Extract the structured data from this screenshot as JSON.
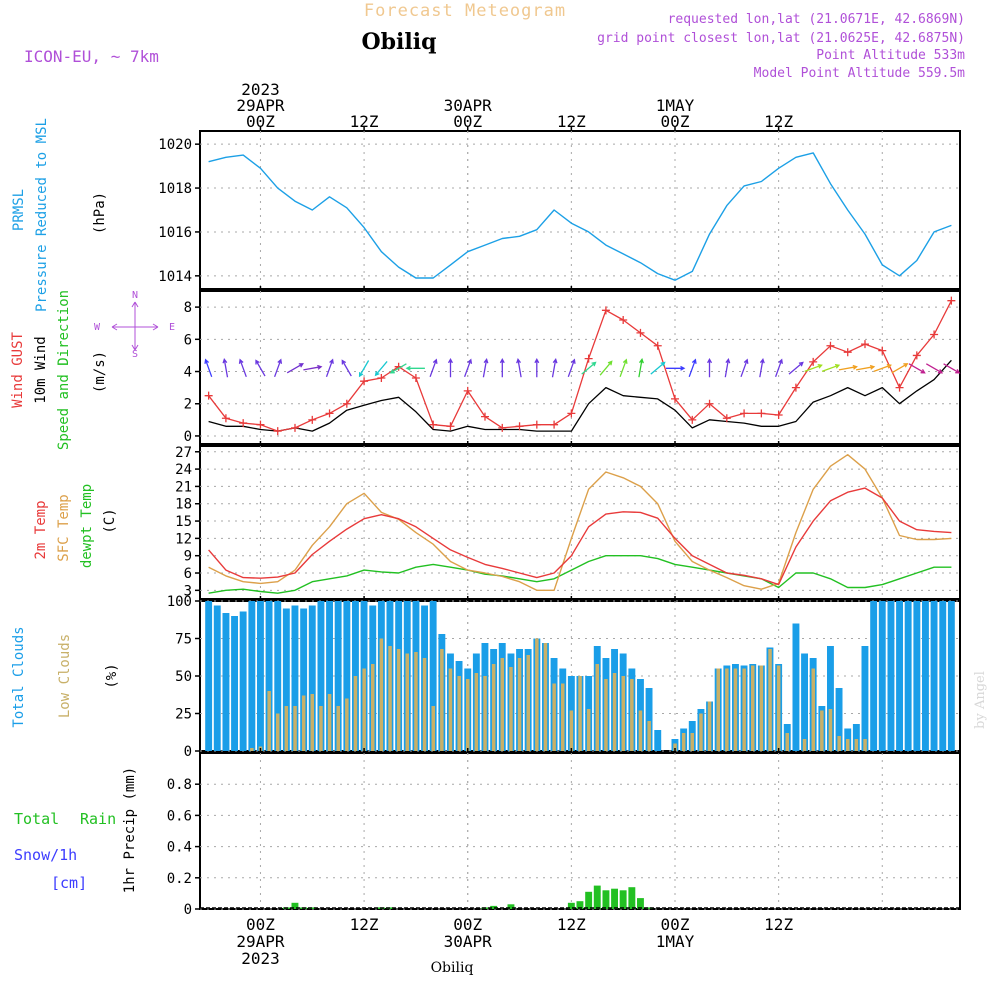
{
  "header": {
    "title": "Forecast Meteogram",
    "location": "Obiliq",
    "model": "ICON-EU, ~ 7km",
    "requested": "requested lon,lat (21.0671E, 42.6869N)",
    "grid_point": "grid point closest lon,lat (21.0625E, 42.6875N)",
    "point_altitude": "Point Altitude 533m",
    "model_altitude": "Model Point Altitude 559.5m"
  },
  "colors": {
    "pressure": "#1ca0e6",
    "gust": "#e83a3a",
    "wind10m": "#000000",
    "temp2m": "#e83a3a",
    "sfc_temp": "#dca04a",
    "dewpoint": "#22c022",
    "total_clouds": "#1a9ee8",
    "low_clouds": "#c8b068",
    "rain": "#22c022",
    "snow": "#3c3cff",
    "meta": "#b050d8",
    "title": "#f0c890"
  },
  "footer": {
    "location": "Obiliq",
    "watermark": "by Angel"
  },
  "chart_data": [
    {
      "id": "pressure",
      "type": "line",
      "title": "PRMSL Pressure Reduced to MSL",
      "ylabel_lines": [
        "PRMSL",
        "Pressure Reduced to MSL"
      ],
      "unit": "(hPa)",
      "ylim": [
        1013.4,
        1020.6
      ],
      "yticks": [
        1014,
        1016,
        1018,
        1020
      ],
      "x_hours": [
        -6,
        -4,
        -2,
        0,
        2,
        4,
        6,
        8,
        10,
        12,
        14,
        16,
        18,
        20,
        22,
        24,
        26,
        28,
        30,
        32,
        34,
        36,
        38,
        40,
        42,
        44,
        46,
        48,
        50,
        52,
        54,
        56,
        58,
        60,
        62,
        64,
        66,
        68,
        70,
        72,
        74,
        76,
        78,
        80
      ],
      "values": [
        1019.2,
        1019.4,
        1019.5,
        1018.9,
        1018.0,
        1017.4,
        1017.0,
        1017.6,
        1017.1,
        1016.2,
        1015.1,
        1014.4,
        1013.9,
        1013.9,
        1014.5,
        1015.1,
        1015.4,
        1015.7,
        1015.8,
        1016.1,
        1017.0,
        1016.4,
        1016.0,
        1015.4,
        1015.0,
        1014.6,
        1014.1,
        1013.8,
        1014.2,
        1015.9,
        1017.2,
        1018.1,
        1018.3,
        1018.9,
        1019.4,
        1019.6,
        1018.2,
        1017.0,
        1015.9,
        1014.5,
        1014.0,
        1014.7,
        1016.0,
        1016.3
      ]
    },
    {
      "id": "wind",
      "type": "line",
      "title": "Wind GUST / 10m Wind Speed and Direction",
      "label_gust": "Wind GUST",
      "label_wind": "10m Wind",
      "label_dir": "Speed and Direction",
      "unit": "(m/s)",
      "compass": {
        "n": "N",
        "s": "S",
        "w": "W",
        "e": "E"
      },
      "ylim": [
        -0.5,
        9
      ],
      "yticks": [
        0,
        2,
        4,
        6,
        8
      ],
      "x_hours": [
        -6,
        -4,
        -2,
        0,
        2,
        4,
        6,
        8,
        10,
        12,
        14,
        16,
        18,
        20,
        22,
        24,
        26,
        28,
        30,
        32,
        34,
        36,
        38,
        40,
        42,
        44,
        46,
        48,
        50,
        52,
        54,
        56,
        58,
        60,
        62,
        64,
        66,
        68,
        70,
        72,
        74,
        76,
        78,
        80
      ],
      "series": [
        {
          "name": "Wind GUST",
          "values": [
            2.5,
            1.1,
            0.8,
            0.7,
            0.3,
            0.5,
            1.0,
            1.4,
            2.0,
            3.4,
            3.6,
            4.3,
            3.6,
            0.7,
            0.6,
            2.8,
            1.2,
            0.5,
            0.6,
            0.7,
            0.7,
            1.4,
            4.8,
            7.8,
            7.2,
            6.4,
            5.6,
            2.3,
            1.0,
            2.0,
            1.1,
            1.4,
            1.4,
            1.3,
            3.0,
            4.6,
            5.6,
            5.2,
            5.7,
            5.3,
            3.0,
            5.0,
            6.3,
            8.4
          ]
        },
        {
          "name": "10m Wind",
          "values": [
            0.9,
            0.6,
            0.6,
            0.4,
            0.3,
            0.5,
            0.3,
            0.8,
            1.6,
            1.9,
            2.2,
            2.4,
            1.5,
            0.4,
            0.3,
            0.6,
            0.4,
            0.4,
            0.4,
            0.3,
            0.3,
            0.3,
            2.0,
            3.0,
            2.5,
            2.4,
            2.3,
            1.6,
            0.5,
            1.0,
            0.9,
            0.8,
            0.6,
            0.6,
            0.9,
            2.1,
            2.5,
            3.0,
            2.5,
            3.0,
            2.0,
            2.8,
            3.5,
            4.7
          ]
        }
      ],
      "direction_arrows": [
        {
          "h": -6,
          "dir": 160,
          "color": "#3c3cff"
        },
        {
          "h": -4,
          "dir": 170,
          "color": "#6a38e0"
        },
        {
          "h": -2,
          "dir": 160,
          "color": "#6a38e0"
        },
        {
          "h": 0,
          "dir": 150,
          "color": "#6a38e0"
        },
        {
          "h": 2,
          "dir": 200,
          "color": "#6a38e0"
        },
        {
          "h": 4,
          "dir": 240,
          "color": "#7030d0"
        },
        {
          "h": 6,
          "dir": 260,
          "color": "#7a30c8"
        },
        {
          "h": 8,
          "dir": 200,
          "color": "#6a38e0"
        },
        {
          "h": 10,
          "dir": 150,
          "color": "#6a38e0"
        },
        {
          "h": 12,
          "dir": 30,
          "color": "#18c8d0"
        },
        {
          "h": 14,
          "dir": 40,
          "color": "#18c8d0"
        },
        {
          "h": 16,
          "dir": 60,
          "color": "#30d890"
        },
        {
          "h": 18,
          "dir": 90,
          "color": "#30d890"
        },
        {
          "h": 20,
          "dir": 200,
          "color": "#6a38e0"
        },
        {
          "h": 22,
          "dir": 180,
          "color": "#6a38e0"
        },
        {
          "h": 24,
          "dir": 200,
          "color": "#6a38e0"
        },
        {
          "h": 26,
          "dir": 190,
          "color": "#6a38e0"
        },
        {
          "h": 28,
          "dir": 180,
          "color": "#6a38e0"
        },
        {
          "h": 30,
          "dir": 170,
          "color": "#6a38e0"
        },
        {
          "h": 32,
          "dir": 180,
          "color": "#6a38e0"
        },
        {
          "h": 34,
          "dir": 190,
          "color": "#6a38e0"
        },
        {
          "h": 36,
          "dir": 200,
          "color": "#6a38e0"
        },
        {
          "h": 38,
          "dir": 230,
          "color": "#30d890"
        },
        {
          "h": 40,
          "dir": 220,
          "color": "#70e030"
        },
        {
          "h": 42,
          "dir": 200,
          "color": "#70e030"
        },
        {
          "h": 44,
          "dir": 190,
          "color": "#30d030"
        },
        {
          "h": 46,
          "dir": 230,
          "color": "#18c8d0"
        },
        {
          "h": 48,
          "dir": 270,
          "color": "#3c3cff"
        },
        {
          "h": 50,
          "dir": 200,
          "color": "#3c3cff"
        },
        {
          "h": 52,
          "dir": 180,
          "color": "#6a38e0"
        },
        {
          "h": 54,
          "dir": 190,
          "color": "#6a38e0"
        },
        {
          "h": 56,
          "dir": 200,
          "color": "#6a38e0"
        },
        {
          "h": 58,
          "dir": 190,
          "color": "#6a38e0"
        },
        {
          "h": 60,
          "dir": 200,
          "color": "#6a38e0"
        },
        {
          "h": 62,
          "dir": 230,
          "color": "#6a38e0"
        },
        {
          "h": 64,
          "dir": 250,
          "color": "#a0e020"
        },
        {
          "h": 66,
          "dir": 250,
          "color": "#a0e020"
        },
        {
          "h": 68,
          "dir": 260,
          "color": "#f0a020"
        },
        {
          "h": 70,
          "dir": 260,
          "color": "#f0a020"
        },
        {
          "h": 72,
          "dir": 250,
          "color": "#f0a020"
        },
        {
          "h": 74,
          "dir": 240,
          "color": "#f0a020"
        },
        {
          "h": 76,
          "dir": 300,
          "color": "#c02090"
        },
        {
          "h": 78,
          "dir": 300,
          "color": "#c02090"
        },
        {
          "h": 80,
          "dir": 300,
          "color": "#c02090"
        }
      ]
    },
    {
      "id": "temperature",
      "type": "line",
      "title": "2m Temp / SFC Temp / dewpt Temp",
      "label_2m": "2m Temp",
      "label_sfc": "SFC Temp",
      "label_dew": "dewpt Temp",
      "unit": "(C)",
      "ylim": [
        1.5,
        28
      ],
      "yticks": [
        3,
        6,
        9,
        12,
        15,
        18,
        21,
        24,
        27
      ],
      "x_hours": [
        -6,
        -4,
        -2,
        0,
        2,
        4,
        6,
        8,
        10,
        12,
        14,
        16,
        18,
        20,
        22,
        24,
        26,
        28,
        30,
        32,
        34,
        36,
        38,
        40,
        42,
        44,
        46,
        48,
        50,
        52,
        54,
        56,
        58,
        60,
        62,
        64,
        66,
        68,
        70,
        72,
        74,
        76,
        78,
        80
      ],
      "series": [
        {
          "name": "2m Temp",
          "values": [
            10.0,
            6.5,
            5.2,
            5.1,
            5.3,
            6.0,
            9.2,
            11.5,
            13.6,
            15.4,
            16.1,
            15.4,
            14.0,
            12.0,
            10.0,
            8.7,
            7.5,
            6.8,
            6.0,
            5.2,
            6.0,
            9.0,
            14.0,
            16.2,
            16.6,
            16.5,
            15.5,
            12.0,
            9.0,
            7.5,
            6.0,
            5.6,
            5.0,
            4.0,
            10.5,
            15.0,
            18.5,
            20.0,
            20.7,
            19.0,
            15.0,
            13.5,
            13.2,
            13.0
          ]
        },
        {
          "name": "SFC Temp",
          "values": [
            7.0,
            5.5,
            4.5,
            4.2,
            4.5,
            6.5,
            10.8,
            14.0,
            18.0,
            19.8,
            16.5,
            15.3,
            13.0,
            11.0,
            8.0,
            6.5,
            6.0,
            5.4,
            4.5,
            3.0,
            3.0,
            12.0,
            20.5,
            23.5,
            22.5,
            21.0,
            18.0,
            11.5,
            8.0,
            6.5,
            5.2,
            3.8,
            3.2,
            4.2,
            13.0,
            20.5,
            24.5,
            26.5,
            24.0,
            19.0,
            12.5,
            11.8,
            11.8,
            12.0
          ]
        },
        {
          "name": "dewpt Temp",
          "values": [
            2.5,
            3.0,
            3.2,
            2.8,
            2.5,
            3.0,
            4.5,
            5.0,
            5.5,
            6.5,
            6.2,
            6.0,
            7.0,
            7.5,
            7.0,
            6.5,
            5.8,
            5.5,
            5.0,
            4.5,
            5.0,
            6.5,
            8.0,
            9.0,
            9.0,
            9.0,
            8.5,
            7.5,
            7.0,
            6.5,
            6.0,
            5.5,
            5.0,
            3.5,
            6.0,
            6.0,
            5.0,
            3.5,
            3.5,
            4.0,
            5.0,
            6.0,
            7.0,
            7.0
          ]
        }
      ]
    },
    {
      "id": "clouds",
      "type": "bar",
      "title": "Total Clouds / Low Clouds",
      "label_total": "Total Clouds",
      "label_low": "Low Clouds",
      "unit": "(%)",
      "ylim": [
        0,
        100
      ],
      "yticks": [
        0,
        25,
        50,
        75,
        100
      ],
      "x_hours": [
        -6,
        -5,
        -4,
        -3,
        -2,
        -1,
        0,
        1,
        2,
        3,
        4,
        5,
        6,
        7,
        8,
        9,
        10,
        11,
        12,
        13,
        14,
        15,
        16,
        17,
        18,
        19,
        20,
        21,
        22,
        23,
        24,
        25,
        26,
        27,
        28,
        29,
        30,
        31,
        32,
        33,
        34,
        35,
        36,
        37,
        38,
        39,
        40,
        41,
        42,
        43,
        44,
        45,
        46,
        47,
        48,
        49,
        50,
        51,
        52,
        53,
        54,
        55,
        56,
        57,
        58,
        59,
        60,
        61,
        62,
        63,
        64,
        65,
        66,
        67,
        68,
        69,
        70,
        71,
        72,
        73,
        74,
        75,
        76,
        77,
        78,
        79,
        80
      ],
      "series": [
        {
          "name": "Total Clouds",
          "values": [
            100,
            97,
            92,
            90,
            93,
            100,
            100,
            100,
            100,
            95,
            97,
            95,
            97,
            100,
            100,
            100,
            100,
            100,
            100,
            97,
            100,
            100,
            100,
            100,
            100,
            97,
            100,
            78,
            65,
            60,
            55,
            65,
            72,
            68,
            72,
            65,
            68,
            68,
            75,
            72,
            62,
            55,
            50,
            50,
            50,
            70,
            62,
            68,
            65,
            55,
            48,
            42,
            14,
            0,
            8,
            15,
            20,
            28,
            33,
            55,
            57,
            58,
            57,
            58,
            57,
            69,
            58,
            18,
            85,
            65,
            62,
            30,
            70,
            42,
            15,
            18,
            70,
            100,
            100,
            100,
            100,
            100,
            100,
            100,
            100,
            100,
            100
          ]
        },
        {
          "name": "Low Clouds",
          "values": [
            0,
            0,
            0,
            0,
            0,
            2,
            3,
            40,
            25,
            30,
            30,
            37,
            38,
            30,
            38,
            30,
            35,
            50,
            55,
            58,
            75,
            70,
            68,
            65,
            66,
            62,
            30,
            68,
            55,
            50,
            48,
            52,
            50,
            58,
            62,
            56,
            62,
            64,
            75,
            72,
            45,
            45,
            27,
            50,
            28,
            58,
            48,
            52,
            50,
            48,
            27,
            20,
            0,
            0,
            5,
            12,
            12,
            25,
            33,
            55,
            55,
            55,
            55,
            57,
            57,
            68,
            57,
            12,
            0,
            8,
            55,
            27,
            28,
            10,
            8,
            8,
            8,
            0,
            0,
            0,
            0,
            0,
            0,
            0,
            0,
            0,
            0
          ]
        }
      ]
    },
    {
      "id": "precip",
      "type": "bar",
      "title": "1hr Precip",
      "ylabel": "1hr Precip (mm)",
      "label_rain_a": "Total",
      "label_rain_b": "Rain",
      "label_snow": "Snow/1h",
      "label_snow_unit": "[cm]",
      "ylim": [
        0,
        1
      ],
      "yticks": [
        0,
        0.2,
        0.4,
        0.6,
        0.8
      ],
      "ytick_labels": [
        "0",
        "0.2",
        "0.4",
        "0.6",
        "0.8"
      ],
      "x_hours": [
        3,
        4,
        5,
        6,
        14,
        15,
        26,
        27,
        29,
        36,
        37,
        38,
        39,
        40,
        41,
        42,
        43,
        44,
        45
      ],
      "values": [
        0.01,
        0.04,
        0.01,
        0.01,
        0.01,
        0.01,
        0.01,
        0.02,
        0.03,
        0.04,
        0.05,
        0.11,
        0.15,
        0.12,
        0.13,
        0.12,
        0.14,
        0.07,
        0.01
      ]
    }
  ],
  "time_axis": {
    "xlim_hours": [
      -7,
      81
    ],
    "grid_hours": [
      12,
      24,
      36,
      48,
      60,
      72
    ],
    "ticks_top": [
      {
        "h": 0,
        "lines": [
          "2023",
          "29APR",
          "00Z"
        ]
      },
      {
        "h": 12,
        "lines": [
          "12Z"
        ]
      },
      {
        "h": 24,
        "lines": [
          "30APR",
          "00Z"
        ]
      },
      {
        "h": 36,
        "lines": [
          "12Z"
        ]
      },
      {
        "h": 48,
        "lines": [
          "1MAY",
          "00Z"
        ]
      },
      {
        "h": 60,
        "lines": [
          "12Z"
        ]
      }
    ],
    "ticks_bottom": [
      {
        "h": 0,
        "lines": [
          "00Z",
          "29APR",
          "2023"
        ]
      },
      {
        "h": 12,
        "lines": [
          "12Z"
        ]
      },
      {
        "h": 24,
        "lines": [
          "00Z",
          "30APR"
        ]
      },
      {
        "h": 36,
        "lines": [
          "12Z"
        ]
      },
      {
        "h": 48,
        "lines": [
          "00Z",
          "1MAY"
        ]
      },
      {
        "h": 60,
        "lines": [
          "12Z"
        ]
      }
    ]
  }
}
